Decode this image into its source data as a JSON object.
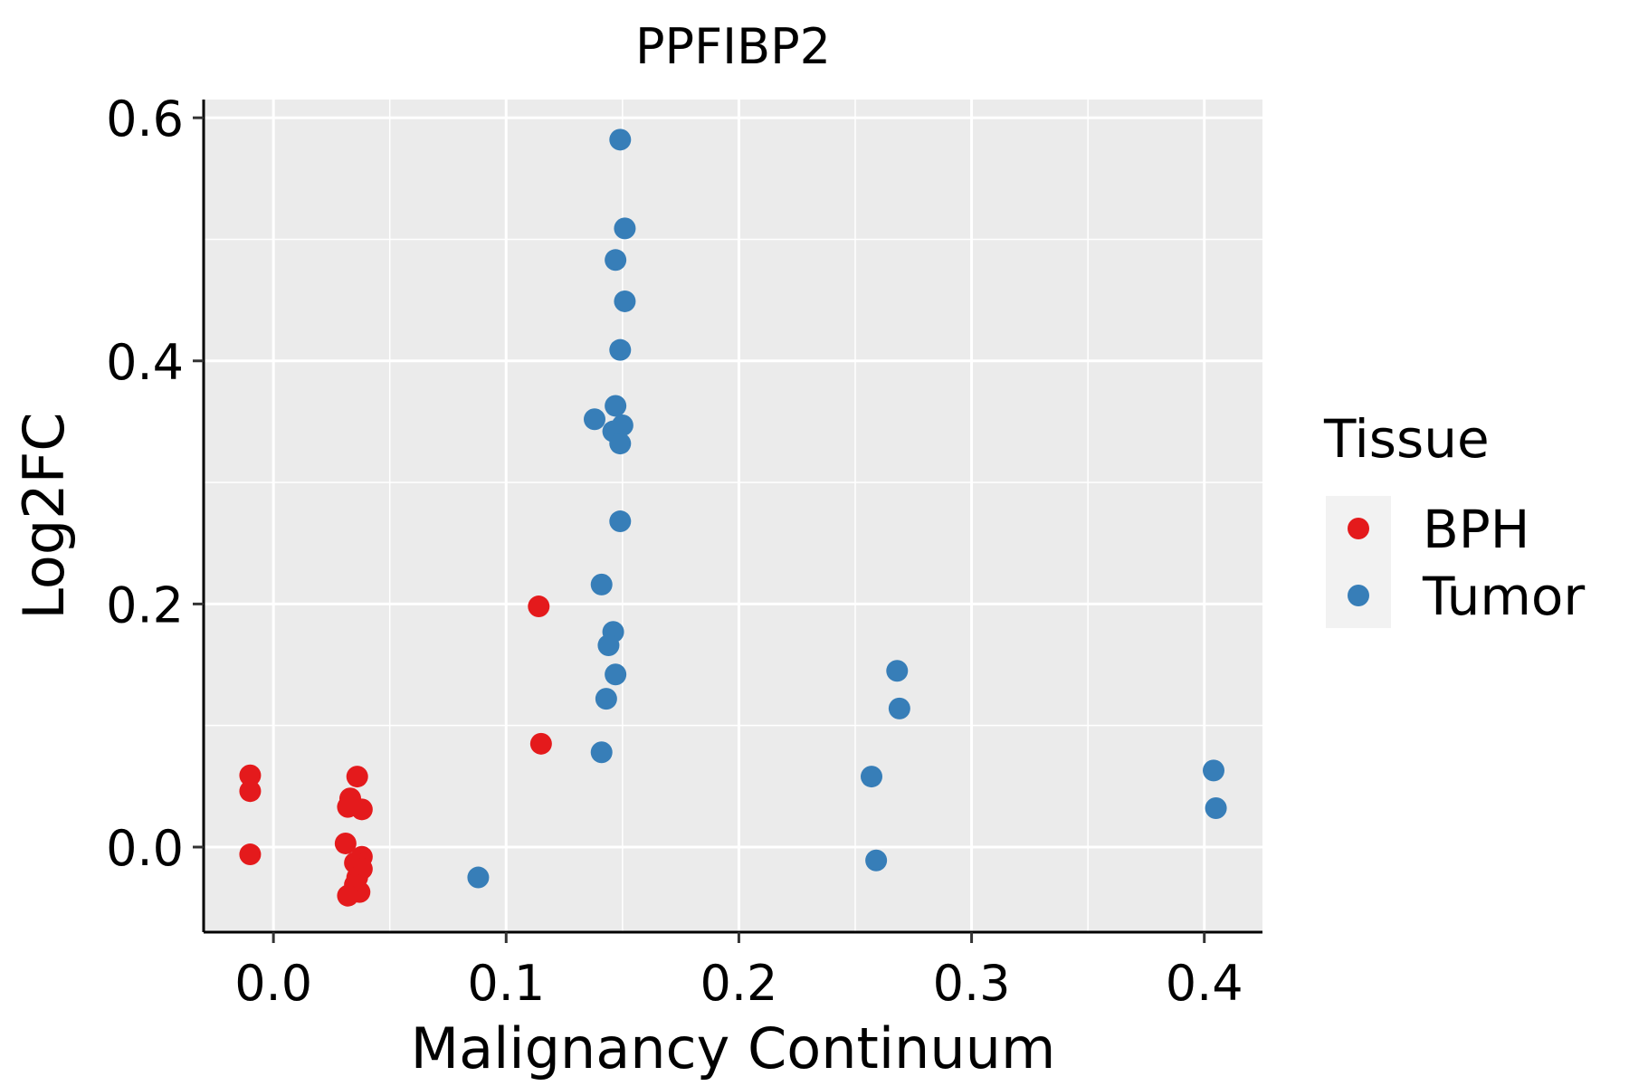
{
  "chart_data": {
    "type": "scatter",
    "title": "PPFIBP2",
    "xlabel": "Malignancy Continuum",
    "ylabel": "Log2FC",
    "xlim": [
      -0.03,
      0.425
    ],
    "ylim": [
      -0.07,
      0.615
    ],
    "x_ticks": [
      0.0,
      0.1,
      0.2,
      0.3,
      0.4
    ],
    "x_tick_labels": [
      "0.0",
      "0.1",
      "0.2",
      "0.3",
      "0.4"
    ],
    "y_ticks": [
      0.0,
      0.2,
      0.4,
      0.6
    ],
    "y_tick_labels": [
      "0.0",
      "0.2",
      "0.4",
      "0.6"
    ],
    "grid": true,
    "legend": {
      "title": "Tissue",
      "position": "right"
    },
    "series": [
      {
        "name": "BPH",
        "color": "#E41A1C",
        "points": [
          [
            -0.01,
            0.059
          ],
          [
            -0.01,
            0.046
          ],
          [
            -0.01,
            -0.006
          ],
          [
            0.036,
            0.058
          ],
          [
            0.033,
            0.04
          ],
          [
            0.032,
            0.033
          ],
          [
            0.038,
            0.031
          ],
          [
            0.031,
            0.003
          ],
          [
            0.038,
            -0.008
          ],
          [
            0.035,
            -0.013
          ],
          [
            0.038,
            -0.018
          ],
          [
            0.036,
            -0.025
          ],
          [
            0.035,
            -0.031
          ],
          [
            0.037,
            -0.037
          ],
          [
            0.032,
            -0.04
          ],
          [
            0.114,
            0.198
          ],
          [
            0.115,
            0.085
          ]
        ]
      },
      {
        "name": "Tumor",
        "color": "#377EB8",
        "points": [
          [
            0.149,
            0.582
          ],
          [
            0.151,
            0.509
          ],
          [
            0.147,
            0.483
          ],
          [
            0.151,
            0.449
          ],
          [
            0.149,
            0.409
          ],
          [
            0.147,
            0.363
          ],
          [
            0.138,
            0.352
          ],
          [
            0.15,
            0.347
          ],
          [
            0.146,
            0.342
          ],
          [
            0.149,
            0.332
          ],
          [
            0.149,
            0.268
          ],
          [
            0.141,
            0.216
          ],
          [
            0.146,
            0.177
          ],
          [
            0.144,
            0.166
          ],
          [
            0.147,
            0.142
          ],
          [
            0.143,
            0.122
          ],
          [
            0.141,
            0.078
          ],
          [
            0.088,
            -0.025
          ],
          [
            0.268,
            0.145
          ],
          [
            0.269,
            0.114
          ],
          [
            0.257,
            0.058
          ],
          [
            0.259,
            -0.011
          ],
          [
            0.404,
            0.063
          ],
          [
            0.405,
            0.032
          ]
        ]
      }
    ]
  }
}
